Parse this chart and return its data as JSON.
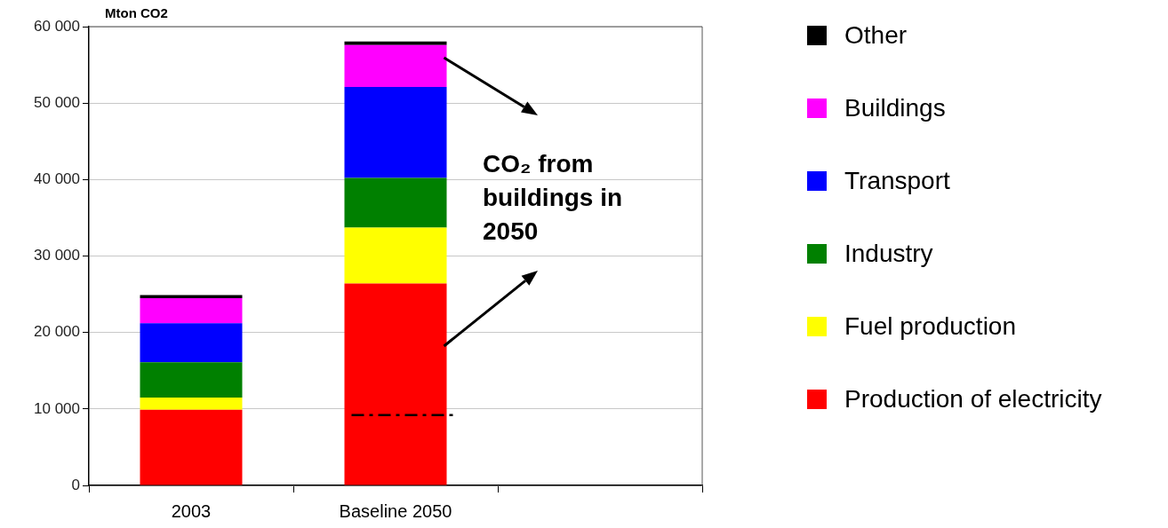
{
  "chart_data": {
    "type": "bar",
    "stacked": true,
    "ylabel": "Mton CO2",
    "categories": [
      "2003",
      "Baseline 2050",
      null
    ],
    "series": [
      {
        "name": "Production of electricity",
        "color": "#ff0000",
        "values": [
          9900,
          26400,
          null
        ]
      },
      {
        "name": "Fuel production",
        "color": "#ffff00",
        "values": [
          1600,
          7300,
          null
        ]
      },
      {
        "name": "Industry",
        "color": "#008000",
        "values": [
          4600,
          6500,
          null
        ]
      },
      {
        "name": "Transport",
        "color": "#0000ff",
        "values": [
          5100,
          11900,
          null
        ]
      },
      {
        "name": "Buildings",
        "color": "#ff00ff",
        "values": [
          3300,
          5500,
          null
        ]
      },
      {
        "name": "Other",
        "color": "#000000",
        "values": [
          400,
          450,
          null
        ]
      }
    ],
    "ylim": [
      0,
      60000
    ],
    "yticks": [
      0,
      {
        "value": 10000,
        "label": "10 000"
      },
      {
        "value": 20000,
        "label": "20 000"
      },
      {
        "value": 30000,
        "label": "30 000"
      },
      {
        "value": 40000,
        "label": "40 000"
      },
      {
        "value": 50000,
        "label": "50 000"
      },
      {
        "value": 60000,
        "label": "60 000"
      }
    ],
    "grid": "y",
    "legend": "right",
    "ref_lines": [
      {
        "axis": "y",
        "value": 9200,
        "color": "#000000",
        "line_style": "dashed"
      }
    ],
    "annotations": [
      "CO₂ from buildings in 2050"
    ]
  }
}
